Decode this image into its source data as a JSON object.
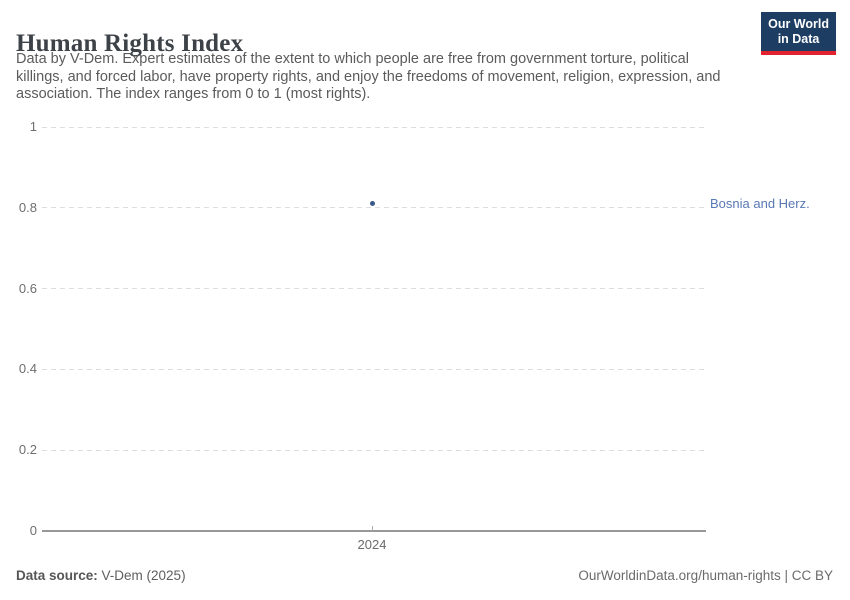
{
  "header": {
    "title": "Human Rights Index",
    "subtitle_lines": [
      "Data by V-Dem. Expert estimates of the extent to which people are free from government torture, political",
      "killings, and forced labor, have property rights, and enjoy the freedoms of movement, religion, expression, and",
      "association. The index ranges from 0 to 1 (most rights)."
    ],
    "logo": {
      "line1": "Our World",
      "line2": "in Data",
      "bg_color": "#1d3d63",
      "accent_color": "#e0232e"
    }
  },
  "chart_data": {
    "type": "scatter",
    "title": "Human Rights Index",
    "subtitle": "Data by V-Dem. Expert estimates of the extent to which people are free from government torture, political killings, and forced labor, have property rights, and enjoy the freedoms of movement, religion, expression, and association. The index ranges from 0 to 1 (most rights).",
    "xlabel": "",
    "ylabel": "",
    "ylim": [
      0,
      1
    ],
    "grid": "horizontal-dashed",
    "yticks": [
      0,
      0.2,
      0.4,
      0.6,
      0.8,
      1
    ],
    "ytick_labels": [
      "0",
      "0.2",
      "0.4",
      "0.6",
      "0.8",
      "1"
    ],
    "xticks": [
      2024
    ],
    "xtick_labels": [
      "2024"
    ],
    "legend_position": "entity-label-right",
    "series": [
      {
        "name": "Bosnia and Herz.",
        "color": "#3b5a8c",
        "label_color": "#5878b4",
        "points": [
          {
            "x": 2024,
            "y": 0.81
          }
        ]
      }
    ]
  },
  "footer": {
    "data_source_label": "Data source:",
    "data_source_value": " V-Dem (2025)",
    "url_text": "OurWorldinData.org/human-rights | CC BY"
  }
}
